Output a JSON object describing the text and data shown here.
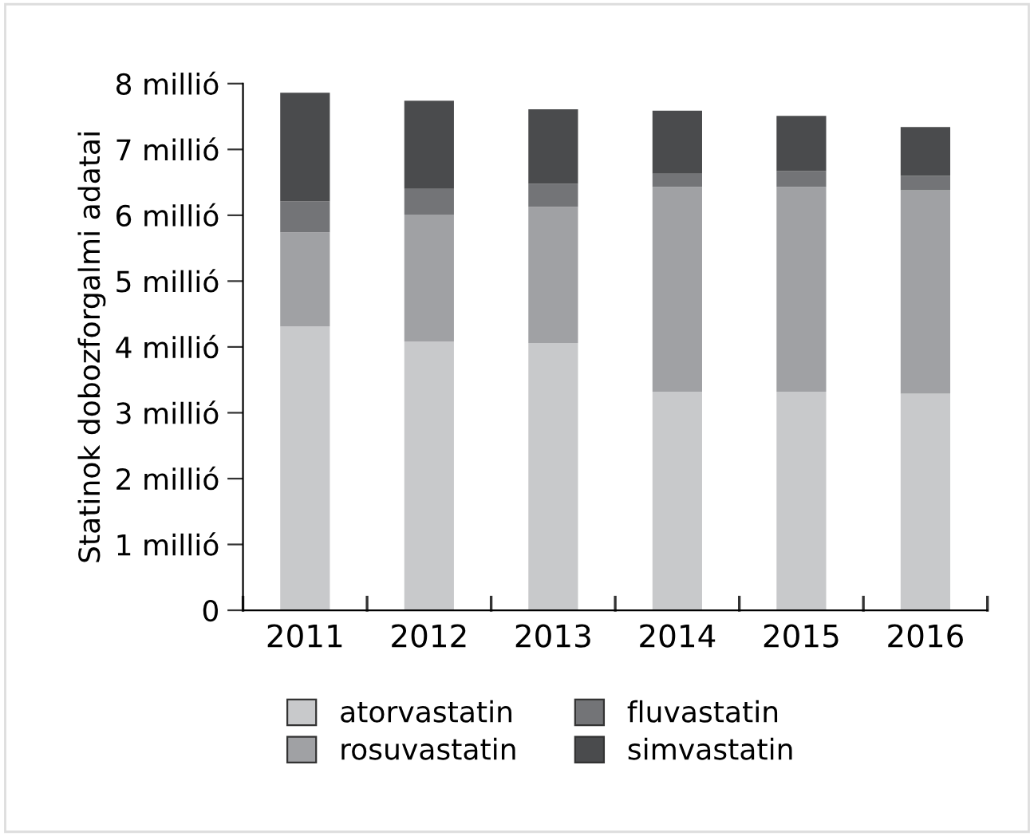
{
  "chart_data": {
    "type": "bar",
    "stacked": true,
    "ylabel": "Statinok dobozforgalmi adatai",
    "categories": [
      "2011",
      "2012",
      "2013",
      "2014",
      "2015",
      "2016"
    ],
    "series": [
      {
        "name": "atorvastatin",
        "color": "#c8c9cb",
        "values": [
          4.31,
          4.08,
          4.06,
          3.32,
          3.32,
          3.29
        ]
      },
      {
        "name": "rosuvastatin",
        "color": "#a0a1a4",
        "values": [
          1.43,
          1.93,
          2.07,
          3.11,
          3.11,
          3.09
        ]
      },
      {
        "name": "fluvastatin",
        "color": "#737477",
        "values": [
          0.47,
          0.39,
          0.35,
          0.2,
          0.24,
          0.22
        ]
      },
      {
        "name": "simvastatin",
        "color": "#4a4b4d",
        "values": [
          1.65,
          1.34,
          1.13,
          0.96,
          0.84,
          0.74
        ]
      }
    ],
    "ylim": [
      0,
      8
    ],
    "yticks": [
      0,
      {
        "value": 1,
        "label": "1 millió"
      },
      {
        "value": 2,
        "label": "2 millió"
      },
      {
        "value": 3,
        "label": "3 millió"
      },
      {
        "value": 4,
        "label": "4 millió"
      },
      {
        "value": 5,
        "label": "5 millió"
      },
      {
        "value": 6,
        "label": "6 millió"
      },
      {
        "value": 7,
        "label": "7 millió"
      },
      {
        "value": 8,
        "label": "8 millió"
      }
    ],
    "grid": false,
    "legend": "bottom"
  }
}
